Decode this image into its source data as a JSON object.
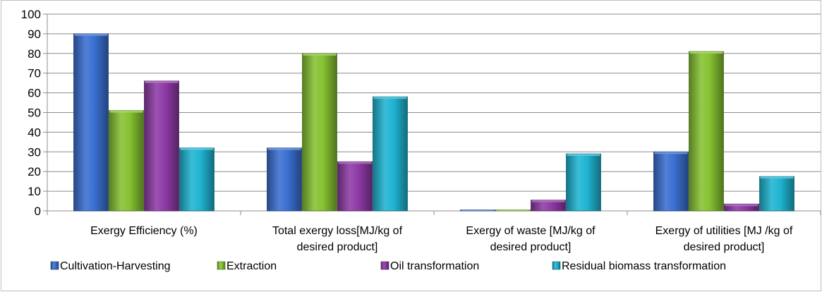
{
  "chart_data": {
    "type": "bar",
    "title": "",
    "xlabel": "",
    "ylabel": "",
    "ylim": [
      0,
      100
    ],
    "yticks": [
      0,
      10,
      20,
      30,
      40,
      50,
      60,
      70,
      80,
      90,
      100
    ],
    "grid": true,
    "legend_position": "bottom",
    "categories": [
      [
        "Exergy Efficiency (%)"
      ],
      [
        "Total exergy loss[MJ/kg of",
        "desired product]"
      ],
      [
        "Exergy of waste [MJ/kg of",
        "desired product]"
      ],
      [
        "Exergy of utilities [MJ /kg of",
        "desired product]"
      ]
    ],
    "series": [
      {
        "name": "Cultivation-Harvesting",
        "color": "#3a6fd1",
        "values": [
          90,
          32,
          0.5,
          30
        ]
      },
      {
        "name": "Extraction",
        "color": "#86c232",
        "values": [
          51,
          80,
          0.5,
          81
        ]
      },
      {
        "name": "Oil transformation",
        "color": "#8e3aa6",
        "values": [
          66,
          25,
          5.5,
          3.5
        ]
      },
      {
        "name": "Residual biomass transformation",
        "color": "#1fb4d2",
        "values": [
          32,
          58,
          29,
          17.5
        ]
      }
    ]
  }
}
